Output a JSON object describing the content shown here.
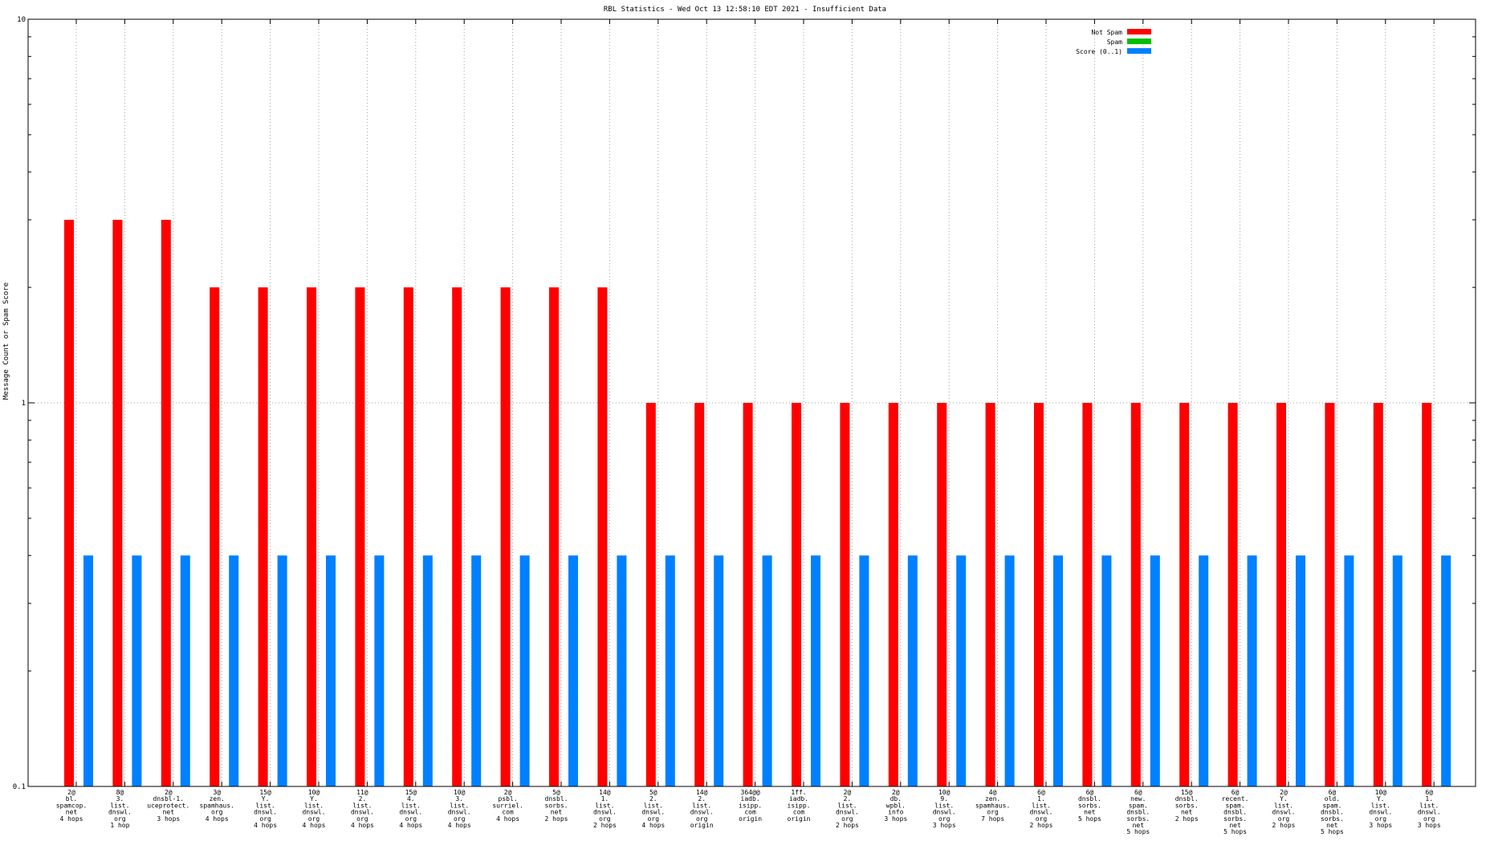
{
  "chart_data": {
    "type": "bar",
    "title": "RBL Statistics - Wed Oct 13 12:58:10 EDT 2021 - Insufficient Data",
    "ylabel": "Message Count or Spam Score",
    "xlabel": "",
    "yscale": "log",
    "ylim": [
      0.1,
      10
    ],
    "yticks": [
      "10",
      "1",
      "0.1"
    ],
    "grid": true,
    "legend_position": "top-right",
    "categories": [
      [
        "2@",
        "bl.",
        "spamcop.",
        "net",
        "4 hops"
      ],
      [
        "8@",
        "3.",
        "list.",
        "dnswl.",
        "org",
        "1 hop"
      ],
      [
        "2@",
        "dnsbl-1.",
        "uceprotect.",
        "net",
        "3 hops"
      ],
      [
        "3@",
        "zen.",
        "spamhaus.",
        "org",
        "4 hops"
      ],
      [
        "15@",
        "Y.",
        "list.",
        "dnswl.",
        "org",
        "4 hops"
      ],
      [
        "10@",
        "Y.",
        "list.",
        "dnswl.",
        "org",
        "4 hops"
      ],
      [
        "11@",
        "2.",
        "list.",
        "dnswl.",
        "org",
        "4 hops"
      ],
      [
        "15@",
        "4.",
        "list.",
        "dnswl.",
        "org",
        "4 hops"
      ],
      [
        "10@",
        "3.",
        "list.",
        "dnswl.",
        "org",
        "4 hops"
      ],
      [
        "2@",
        "psbl.",
        "surriel.",
        "com",
        "4 hops"
      ],
      [
        "5@",
        "dnsbl.",
        "sorbs.",
        "net",
        "2 hops"
      ],
      [
        "14@",
        "1.",
        "list.",
        "dnswl.",
        "org",
        "2 hops"
      ],
      [
        "5@",
        "2.",
        "list.",
        "dnswl.",
        "org",
        "4 hops"
      ],
      [
        "14@",
        "2.",
        "list.",
        "dnswl.",
        "org",
        "origin"
      ],
      [
        "364@@",
        "iadb.",
        "isipp.",
        "com",
        "origin"
      ],
      [
        "1ff.",
        "iadb.",
        "isipp.",
        "com",
        "origin"
      ],
      [
        "2@",
        "2.",
        "list.",
        "dnswl.",
        "org",
        "2 hops"
      ],
      [
        "2@",
        "db.",
        "wpbl.",
        "info",
        "3 hops"
      ],
      [
        "10@",
        "9.",
        "list.",
        "dnswl.",
        "org",
        "3 hops"
      ],
      [
        "4@",
        "zen.",
        "spamhaus.",
        "org",
        "7 hops"
      ],
      [
        "6@",
        "1.",
        "list.",
        "dnswl.",
        "org",
        "2 hops"
      ],
      [
        "6@",
        "dnsbl.",
        "sorbs.",
        "net",
        "5 hops"
      ],
      [
        "6@",
        "new.",
        "spam.",
        "dnsbl.",
        "sorbs.",
        "net",
        "5 hops"
      ],
      [
        "15@",
        "dnsbl.",
        "sorbs.",
        "net",
        "2 hops"
      ],
      [
        "6@",
        "recent.",
        "spam.",
        "dnsbl.",
        "sorbs.",
        "net",
        "5 hops"
      ],
      [
        "2@",
        "Y.",
        "list.",
        "dnswl.",
        "org",
        "2 hops"
      ],
      [
        "6@",
        "old.",
        "spam.",
        "dnsbl.",
        "sorbs.",
        "net",
        "5 hops"
      ],
      [
        "10@",
        "Y.",
        "list.",
        "dnswl.",
        "org",
        "3 hops"
      ],
      [
        "6@",
        "1.",
        "list.",
        "dnswl.",
        "org",
        "3 hops"
      ]
    ],
    "series": [
      {
        "name": "Not Spam",
        "color": "#ff0000",
        "values": [
          3,
          3,
          3,
          2,
          2,
          2,
          2,
          2,
          2,
          2,
          2,
          2,
          1,
          1,
          1,
          1,
          1,
          1,
          1,
          1,
          1,
          1,
          1,
          1,
          1,
          1,
          1,
          1,
          1
        ]
      },
      {
        "name": "Spam",
        "color": "#00c000",
        "values": [
          0,
          0,
          0,
          0,
          0,
          0,
          0,
          0,
          0,
          0,
          0,
          0,
          0,
          0,
          0,
          0,
          0,
          0,
          0,
          0,
          0,
          0,
          0,
          0,
          0,
          0,
          0,
          0,
          0
        ]
      },
      {
        "name": "Score (0..1)",
        "color": "#0080ff",
        "values": [
          0.4,
          0.4,
          0.4,
          0.4,
          0.4,
          0.4,
          0.4,
          0.4,
          0.4,
          0.4,
          0.4,
          0.4,
          0.4,
          0.4,
          0.4,
          0.4,
          0.4,
          0.4,
          0.4,
          0.4,
          0.4,
          0.4,
          0.4,
          0.4,
          0.4,
          0.4,
          0.4,
          0.4,
          0.4
        ]
      }
    ]
  }
}
